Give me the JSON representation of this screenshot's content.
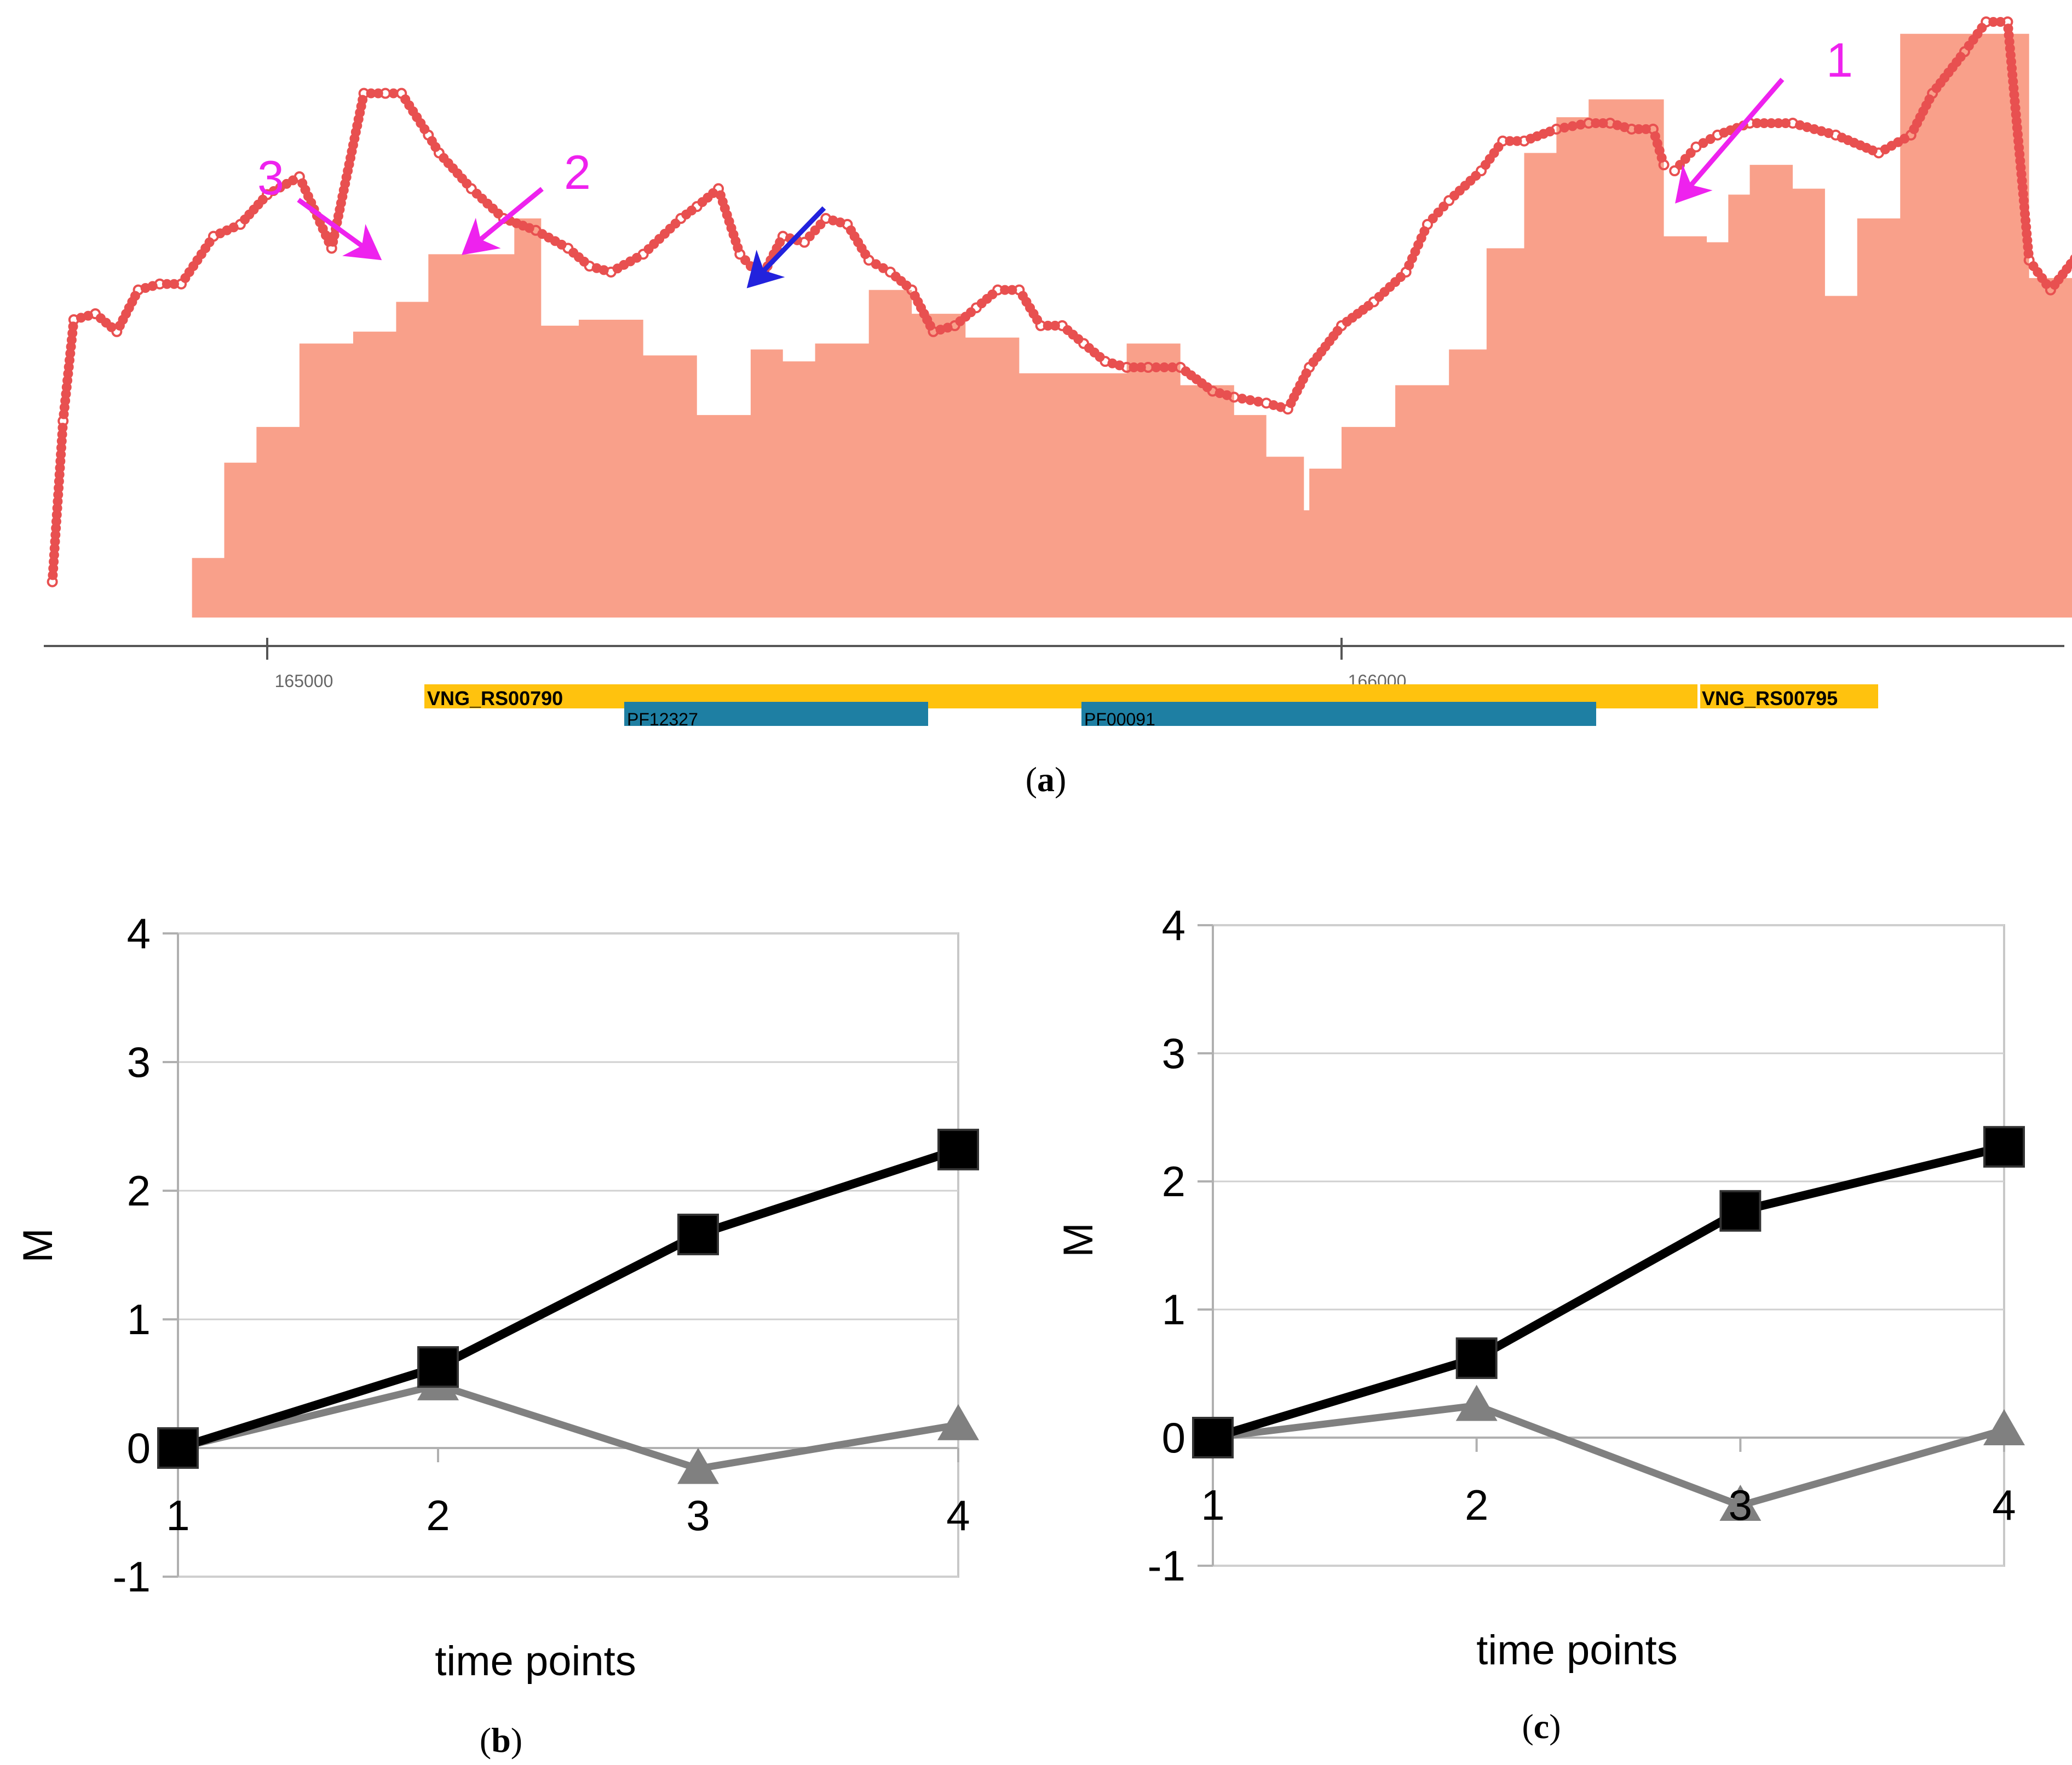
{
  "colors": {
    "coverage": "#f9a08a",
    "trace": "#e85050",
    "annotation_arrow": "#ee22ee",
    "tss_arrow": "#2222dd",
    "gene": "#ffc20e",
    "domain": "#1e7fa3",
    "series_black": "#000000",
    "series_gray": "#808080"
  },
  "panel_a": {
    "caption_letter": "a",
    "arrow_labels": [
      "1",
      "2",
      "3"
    ],
    "tick_labels": [
      "165000",
      "166000"
    ],
    "genes": [
      "VNG_RS00790",
      "VNG_RS00795"
    ],
    "domains": [
      "PF12327",
      "PF00091"
    ]
  },
  "chart_data": [
    {
      "panel": "a",
      "type": "area",
      "title": "",
      "xlabel": "",
      "ylabel": "",
      "xlim": [
        164800,
        166690
      ],
      "ylim": [
        0,
        100
      ],
      "x_ticks": [
        165000,
        166000
      ],
      "series": [
        {
          "name": "coverage (shaded)",
          "style": "area",
          "x": [
            164800,
            164930,
            164960,
            164990,
            165030,
            165080,
            165120,
            165150,
            165175,
            165200,
            165230,
            165255,
            165290,
            165350,
            165400,
            165450,
            165480,
            165510,
            165560,
            165600,
            165650,
            165700,
            165760,
            165800,
            165850,
            165900,
            165930,
            165965,
            165970,
            166000,
            166050,
            166100,
            166135,
            166170,
            166200,
            166230,
            166260,
            166300,
            166340,
            166360,
            166380,
            166420,
            166450,
            166480,
            166520,
            166540,
            166600,
            166630,
            166640,
            166690
          ],
          "y": [
            null,
            10,
            26,
            32,
            46,
            48,
            53,
            61,
            61,
            61,
            67,
            49,
            50,
            44,
            34,
            45,
            43,
            46,
            55,
            51,
            47,
            41,
            41,
            46,
            39,
            34,
            27,
            18,
            25,
            32,
            39,
            45,
            62,
            78,
            84,
            87,
            87,
            64,
            63,
            71,
            76,
            72,
            54,
            67,
            98,
            98,
            98,
            98,
            57,
            51
          ]
        },
        {
          "name": "signal trace (dots)",
          "style": "dots",
          "x": [
            164800,
            164810,
            164820,
            164840,
            164860,
            164880,
            164900,
            164920,
            164950,
            164975,
            165000,
            165030,
            165060,
            165090,
            165110,
            165125,
            165150,
            165160,
            165190,
            165220,
            165250,
            165280,
            165300,
            165320,
            165350,
            165385,
            165400,
            165420,
            165440,
            165460,
            165480,
            165500,
            165520,
            165540,
            165560,
            165580,
            165600,
            165620,
            165640,
            165660,
            165680,
            165700,
            165720,
            165740,
            165760,
            165780,
            165800,
            165820,
            165850,
            165880,
            165900,
            165930,
            165950,
            165970,
            166000,
            166030,
            166060,
            166080,
            166100,
            166130,
            166150,
            166170,
            166200,
            166230,
            166250,
            166270,
            166290,
            166300,
            166310,
            166330,
            166350,
            166380,
            166420,
            166460,
            166500,
            166530,
            166550,
            166580,
            166600,
            166620,
            166640,
            166660,
            166690
          ],
          "y": [
            6,
            33,
            50,
            51,
            48,
            55,
            56,
            56,
            64,
            66,
            71,
            74,
            62,
            88,
            88,
            88,
            81,
            78,
            72,
            67,
            65,
            62,
            59,
            58,
            61,
            67,
            69,
            72,
            61,
            57,
            64,
            63,
            67,
            66,
            60,
            58,
            55,
            48,
            49,
            52,
            55,
            55,
            49,
            49,
            46,
            43,
            42,
            42,
            42,
            38,
            37,
            36,
            35,
            42,
            49,
            53,
            58,
            66,
            70,
            75,
            80,
            80,
            82,
            83,
            83,
            82,
            82,
            76,
            75,
            79,
            81,
            83,
            83,
            81,
            78,
            81,
            88,
            95,
            100,
            100,
            60,
            55,
            62
          ]
        }
      ],
      "annotations": [
        {
          "label": "1",
          "color": "magenta",
          "x": 166320
        },
        {
          "label": "2",
          "color": "magenta",
          "x": 165180
        },
        {
          "label": "3",
          "color": "magenta",
          "x": 165110
        },
        {
          "label": "",
          "color": "blue",
          "x": 165440
        }
      ]
    },
    {
      "panel": "b",
      "caption_letter": "b",
      "type": "line",
      "title": "",
      "xlabel": "time points",
      "ylabel": "M",
      "categories": [
        "1",
        "2",
        "3",
        "4"
      ],
      "ylim": [
        -1,
        4
      ],
      "y_ticks": [
        "4",
        "3",
        "2",
        "1",
        "0",
        "-1"
      ],
      "series": [
        {
          "name": "black squares",
          "marker": "square",
          "values": [
            0,
            0.63,
            1.66,
            2.32
          ]
        },
        {
          "name": "gray triangles",
          "marker": "triangle",
          "values": [
            0,
            0.49,
            -0.16,
            0.18
          ]
        }
      ]
    },
    {
      "panel": "c",
      "caption_letter": "c",
      "type": "line",
      "title": "",
      "xlabel": "time points",
      "ylabel": "M",
      "categories": [
        "1",
        "2",
        "3",
        "4"
      ],
      "ylim": [
        -1,
        4
      ],
      "y_ticks": [
        "4",
        "3",
        "2",
        "1",
        "0",
        "-1"
      ],
      "series": [
        {
          "name": "black squares",
          "marker": "square",
          "values": [
            0,
            0.62,
            1.77,
            2.27
          ]
        },
        {
          "name": "gray triangles",
          "marker": "triangle",
          "values": [
            0,
            0.25,
            -0.53,
            0.06
          ]
        }
      ]
    }
  ]
}
